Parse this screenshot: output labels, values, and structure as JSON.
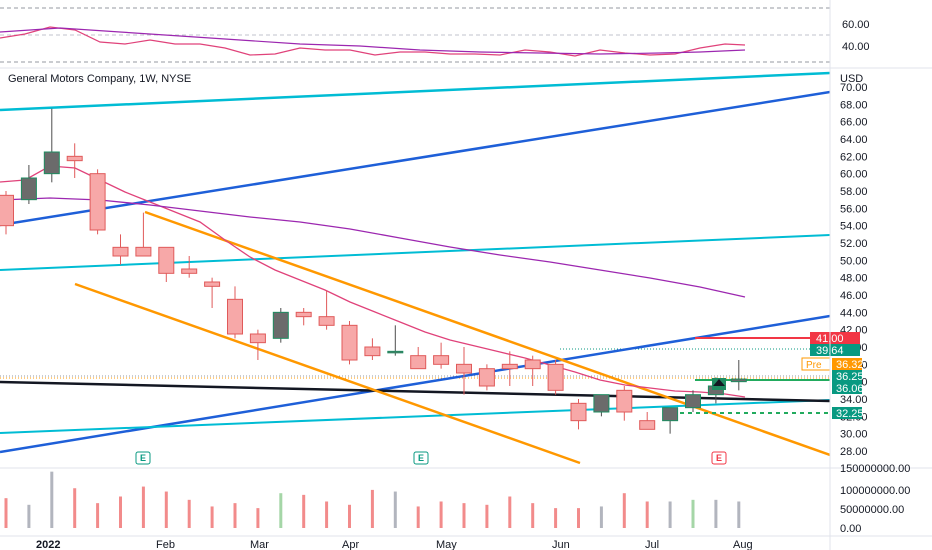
{
  "chart_data": {
    "type": "candlestick",
    "title": "General Motors Company, 1W, NYSE",
    "currency": "USD",
    "price_axis": {
      "ticks": [
        "70.00",
        "68.00",
        "66.00",
        "64.00",
        "62.00",
        "60.00",
        "58.00",
        "56.00",
        "54.00",
        "52.00",
        "50.00",
        "48.00",
        "46.00",
        "44.00",
        "42.00",
        "40.00",
        "38.00",
        "36.00",
        "34.00",
        "32.00",
        "30.00",
        "28.00"
      ],
      "range": [
        27,
        71
      ]
    },
    "rsi_axis": {
      "ticks": [
        "60.00",
        "40.00"
      ]
    },
    "volume_axis": {
      "ticks": [
        "150000000.00",
        "100000000.00",
        "50000000.00",
        "0.00"
      ],
      "max": 175000000
    },
    "time_labels": [
      "2022",
      "Feb",
      "Mar",
      "Apr",
      "May",
      "Jun",
      "Jul",
      "Aug"
    ],
    "candles": [
      {
        "o": 57.5,
        "h": 58.0,
        "l": 53.0,
        "c": 54.0
      },
      {
        "o": 57.0,
        "h": 61.0,
        "l": 56.5,
        "c": 59.5
      },
      {
        "o": 60.0,
        "h": 67.5,
        "l": 59.0,
        "c": 62.5
      },
      {
        "o": 62.0,
        "h": 63.5,
        "l": 59.5,
        "c": 61.5
      },
      {
        "o": 60.0,
        "h": 60.5,
        "l": 53.0,
        "c": 53.5
      },
      {
        "o": 51.5,
        "h": 53.0,
        "l": 49.5,
        "c": 50.5
      },
      {
        "o": 51.5,
        "h": 55.5,
        "l": 50.5,
        "c": 50.5
      },
      {
        "o": 51.5,
        "h": 51.5,
        "l": 47.5,
        "c": 48.5
      },
      {
        "o": 49.0,
        "h": 50.5,
        "l": 48.0,
        "c": 48.5
      },
      {
        "o": 47.5,
        "h": 48.0,
        "l": 44.5,
        "c": 47.0
      },
      {
        "o": 45.5,
        "h": 47.0,
        "l": 41.0,
        "c": 41.5
      },
      {
        "o": 41.5,
        "h": 42.0,
        "l": 38.5,
        "c": 40.5
      },
      {
        "o": 41.0,
        "h": 44.5,
        "l": 40.5,
        "c": 44.0
      },
      {
        "o": 44.0,
        "h": 44.5,
        "l": 42.5,
        "c": 43.5
      },
      {
        "o": 43.5,
        "h": 46.5,
        "l": 42.0,
        "c": 42.5
      },
      {
        "o": 42.5,
        "h": 43.0,
        "l": 38.0,
        "c": 38.5
      },
      {
        "o": 40.0,
        "h": 41.0,
        "l": 38.5,
        "c": 39.0
      },
      {
        "o": 39.5,
        "h": 42.5,
        "l": 39.0,
        "c": 39.5
      },
      {
        "o": 39.0,
        "h": 40.0,
        "l": 37.5,
        "c": 37.5
      },
      {
        "o": 39.0,
        "h": 40.5,
        "l": 37.5,
        "c": 38.0
      },
      {
        "o": 38.0,
        "h": 40.0,
        "l": 34.5,
        "c": 37.0
      },
      {
        "o": 37.5,
        "h": 38.0,
        "l": 35.0,
        "c": 35.5
      },
      {
        "o": 38.0,
        "h": 39.5,
        "l": 35.5,
        "c": 37.5
      },
      {
        "o": 38.5,
        "h": 39.0,
        "l": 35.5,
        "c": 37.5
      },
      {
        "o": 38.0,
        "h": 38.5,
        "l": 34.5,
        "c": 35.0
      },
      {
        "o": 33.5,
        "h": 34.0,
        "l": 30.5,
        "c": 31.5
      },
      {
        "o": 32.5,
        "h": 34.5,
        "l": 32.0,
        "c": 34.5
      },
      {
        "o": 35.0,
        "h": 35.5,
        "l": 31.5,
        "c": 32.5
      },
      {
        "o": 31.5,
        "h": 32.5,
        "l": 30.5,
        "c": 30.5
      },
      {
        "o": 31.5,
        "h": 33.0,
        "l": 30.0,
        "c": 33.0
      },
      {
        "o": 33.0,
        "h": 35.0,
        "l": 32.5,
        "c": 34.5
      },
      {
        "o": 34.5,
        "h": 36.5,
        "l": 33.5,
        "c": 35.5
      },
      {
        "o": 36.0,
        "h": 38.5,
        "l": 35.0,
        "c": 36.3
      }
    ],
    "volumes": [
      90,
      70,
      170,
      120,
      75,
      95,
      125,
      110,
      85,
      65,
      75,
      60,
      105,
      100,
      80,
      70,
      115,
      110,
      65,
      80,
      75,
      70,
      95,
      75,
      60,
      60,
      65,
      105,
      80,
      80,
      85,
      85,
      80
    ],
    "price_tags": [
      {
        "label": "41.00",
        "color": "#f23645"
      },
      {
        "label": "39.64",
        "color": "#089981"
      },
      {
        "label": "36.32",
        "color": "#ff9800",
        "prefix": "Pre"
      },
      {
        "label": "36.25",
        "color": "#089981"
      },
      {
        "label": "36.06",
        "color": "#089981"
      },
      {
        "label": "32.25",
        "color": "#089981"
      }
    ],
    "earnings_marks": [
      "E",
      "E",
      "E"
    ],
    "up_color": "#9e9e9e",
    "down_color": "#f7a8a8",
    "wick_up": "#4d4d4d",
    "wick_down": "#e05a5a"
  }
}
